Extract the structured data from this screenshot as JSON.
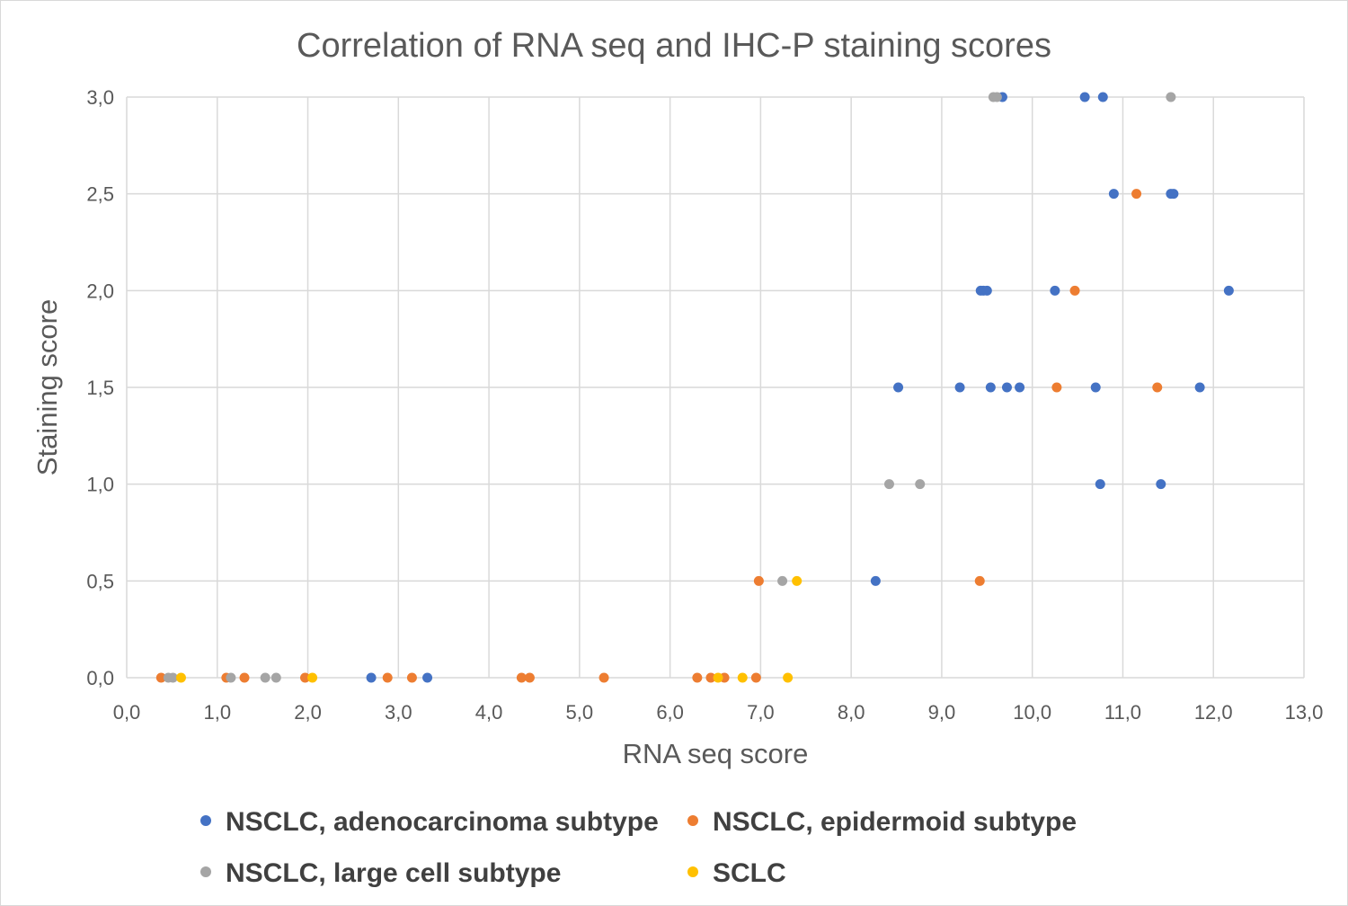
{
  "chart_data": {
    "type": "scatter",
    "title": "Correlation of RNA seq and IHC-P staining scores",
    "xlabel": "RNA seq score",
    "ylabel": "Staining score",
    "xlim": [
      0,
      13
    ],
    "ylim": [
      0,
      3
    ],
    "x_ticks": [
      "0,0",
      "1,0",
      "2,0",
      "3,0",
      "4,0",
      "5,0",
      "6,0",
      "7,0",
      "8,0",
      "9,0",
      "10,0",
      "11,0",
      "12,0",
      "13,0"
    ],
    "y_ticks": [
      "0,0",
      "0,5",
      "1,0",
      "1,5",
      "2,0",
      "2,5",
      "3,0"
    ],
    "grid": true,
    "legend_position": "bottom",
    "series": [
      {
        "name": "NSCLC, adenocarcinoma subtype",
        "color": "#4472c4",
        "points": [
          [
            2.7,
            0.0
          ],
          [
            3.32,
            0.0
          ],
          [
            8.27,
            0.5
          ],
          [
            10.75,
            1.0
          ],
          [
            11.42,
            1.0
          ],
          [
            8.52,
            1.5
          ],
          [
            9.2,
            1.5
          ],
          [
            9.54,
            1.5
          ],
          [
            9.72,
            1.5
          ],
          [
            9.86,
            1.5
          ],
          [
            10.7,
            1.5
          ],
          [
            11.85,
            1.5
          ],
          [
            9.43,
            2.0
          ],
          [
            9.46,
            2.0
          ],
          [
            9.5,
            2.0
          ],
          [
            10.25,
            2.0
          ],
          [
            12.17,
            2.0
          ],
          [
            10.9,
            2.5
          ],
          [
            11.53,
            2.5
          ],
          [
            11.56,
            2.5
          ],
          [
            9.67,
            3.0
          ],
          [
            10.58,
            3.0
          ],
          [
            10.78,
            3.0
          ]
        ]
      },
      {
        "name": "NSCLC, epidermoid subtype",
        "color": "#ed7d31",
        "points": [
          [
            0.38,
            0.0
          ],
          [
            1.1,
            0.0
          ],
          [
            1.3,
            0.0
          ],
          [
            1.97,
            0.0
          ],
          [
            2.88,
            0.0
          ],
          [
            3.15,
            0.0
          ],
          [
            4.36,
            0.0
          ],
          [
            4.45,
            0.0
          ],
          [
            5.27,
            0.0
          ],
          [
            6.3,
            0.0
          ],
          [
            6.45,
            0.0
          ],
          [
            6.6,
            0.0
          ],
          [
            6.95,
            0.0
          ],
          [
            6.98,
            0.5
          ],
          [
            9.42,
            0.5
          ],
          [
            10.27,
            1.5
          ],
          [
            11.38,
            1.5
          ],
          [
            10.47,
            2.0
          ],
          [
            11.15,
            2.5
          ]
        ]
      },
      {
        "name": "NSCLC, large cell subtype",
        "color": "#a5a5a5",
        "points": [
          [
            0.46,
            0.0
          ],
          [
            0.51,
            0.0
          ],
          [
            1.15,
            0.0
          ],
          [
            1.53,
            0.0
          ],
          [
            1.65,
            0.0
          ],
          [
            7.24,
            0.5
          ],
          [
            8.42,
            1.0
          ],
          [
            8.76,
            1.0
          ],
          [
            9.57,
            3.0
          ],
          [
            9.61,
            3.0
          ],
          [
            11.53,
            3.0
          ]
        ]
      },
      {
        "name": "SCLC",
        "color": "#ffc000",
        "points": [
          [
            0.6,
            0.0
          ],
          [
            2.05,
            0.0
          ],
          [
            6.53,
            0.0
          ],
          [
            6.8,
            0.0
          ],
          [
            7.3,
            0.0
          ],
          [
            7.4,
            0.5
          ]
        ]
      }
    ]
  }
}
